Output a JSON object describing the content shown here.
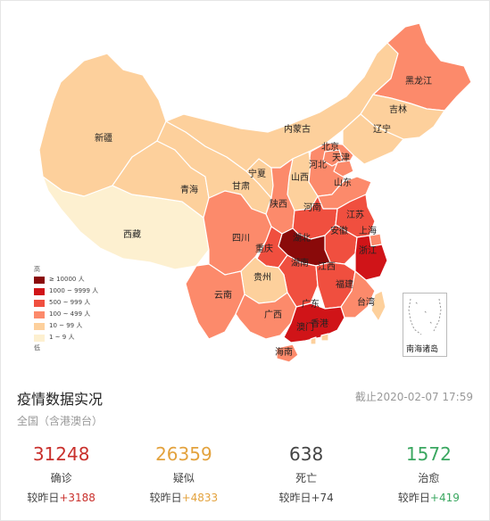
{
  "colors": {
    "lvl1": "#fdf0d0",
    "lvl2": "#fdd09c",
    "lvl3": "#fc8a6b",
    "lvl4": "#f04f3f",
    "lvl5": "#d01418",
    "lvl6": "#8a0a0a",
    "confirmed": "#c9302c",
    "suspected": "#e3a23d",
    "dead": "#444444",
    "cured": "#3aa760"
  },
  "map": {
    "provinces": [
      {
        "name": "新疆",
        "level": "lvl2"
      },
      {
        "name": "西藏",
        "level": "lvl1"
      },
      {
        "name": "青海",
        "level": "lvl2"
      },
      {
        "name": "甘肃",
        "level": "lvl2"
      },
      {
        "name": "宁夏",
        "level": "lvl2"
      },
      {
        "name": "内蒙古",
        "level": "lvl2"
      },
      {
        "name": "黑龙江",
        "level": "lvl3"
      },
      {
        "name": "吉林",
        "level": "lvl2"
      },
      {
        "name": "辽宁",
        "level": "lvl2"
      },
      {
        "name": "北京",
        "level": "lvl3"
      },
      {
        "name": "天津",
        "level": "lvl3"
      },
      {
        "name": "河北",
        "level": "lvl3"
      },
      {
        "name": "山西",
        "level": "lvl2"
      },
      {
        "name": "陕西",
        "level": "lvl3"
      },
      {
        "name": "山东",
        "level": "lvl3"
      },
      {
        "name": "河南",
        "level": "lvl4"
      },
      {
        "name": "江苏",
        "level": "lvl4"
      },
      {
        "name": "安徽",
        "level": "lvl4"
      },
      {
        "name": "上海",
        "level": "lvl3"
      },
      {
        "name": "湖北",
        "level": "lvl6"
      },
      {
        "name": "浙江",
        "level": "lvl5"
      },
      {
        "name": "四川",
        "level": "lvl3"
      },
      {
        "name": "重庆",
        "level": "lvl4"
      },
      {
        "name": "湖南",
        "level": "lvl4"
      },
      {
        "name": "江西",
        "level": "lvl4"
      },
      {
        "name": "贵州",
        "level": "lvl2"
      },
      {
        "name": "云南",
        "level": "lvl3"
      },
      {
        "name": "福建",
        "level": "lvl3"
      },
      {
        "name": "广西",
        "level": "lvl3"
      },
      {
        "name": "广东",
        "level": "lvl5"
      },
      {
        "name": "台湾",
        "level": "lvl2"
      },
      {
        "name": "香港",
        "level": "lvl2"
      },
      {
        "name": "澳门",
        "level": "lvl2"
      },
      {
        "name": "海南",
        "level": "lvl3"
      }
    ],
    "legend": {
      "top_label": "高",
      "bottom_label": "低",
      "items": [
        {
          "label": "≥ 10000 人",
          "color": "#8a0a0a"
        },
        {
          "label": "1000 ~ 9999 人",
          "color": "#d01418"
        },
        {
          "label": "500 ~ 999 人",
          "color": "#f04f3f"
        },
        {
          "label": "100 ~ 499 人",
          "color": "#fc8a6b"
        },
        {
          "label": "10 ~ 99 人",
          "color": "#fdd09c"
        },
        {
          "label": "1 ~ 9 人",
          "color": "#fdf0d0"
        }
      ]
    },
    "south_china_sea_label": "南海诸岛"
  },
  "header": {
    "title": "疫情数据实况",
    "date": "截止2020-02-07 17:59",
    "scope": "全国（含港澳台）"
  },
  "stats": [
    {
      "key": "confirmed",
      "value": "31248",
      "label": "确诊",
      "delta_prefix": "较昨日",
      "delta": "+3188",
      "color": "#c9302c"
    },
    {
      "key": "suspected",
      "value": "26359",
      "label": "疑似",
      "delta_prefix": "较昨日",
      "delta": "+4833",
      "color": "#e3a23d"
    },
    {
      "key": "dead",
      "value": "638",
      "label": "死亡",
      "delta_prefix": "较昨日",
      "delta": "+74",
      "color": "#444444"
    },
    {
      "key": "cured",
      "value": "1572",
      "label": "治愈",
      "delta_prefix": "较昨日",
      "delta": "+419",
      "color": "#3aa760"
    }
  ]
}
